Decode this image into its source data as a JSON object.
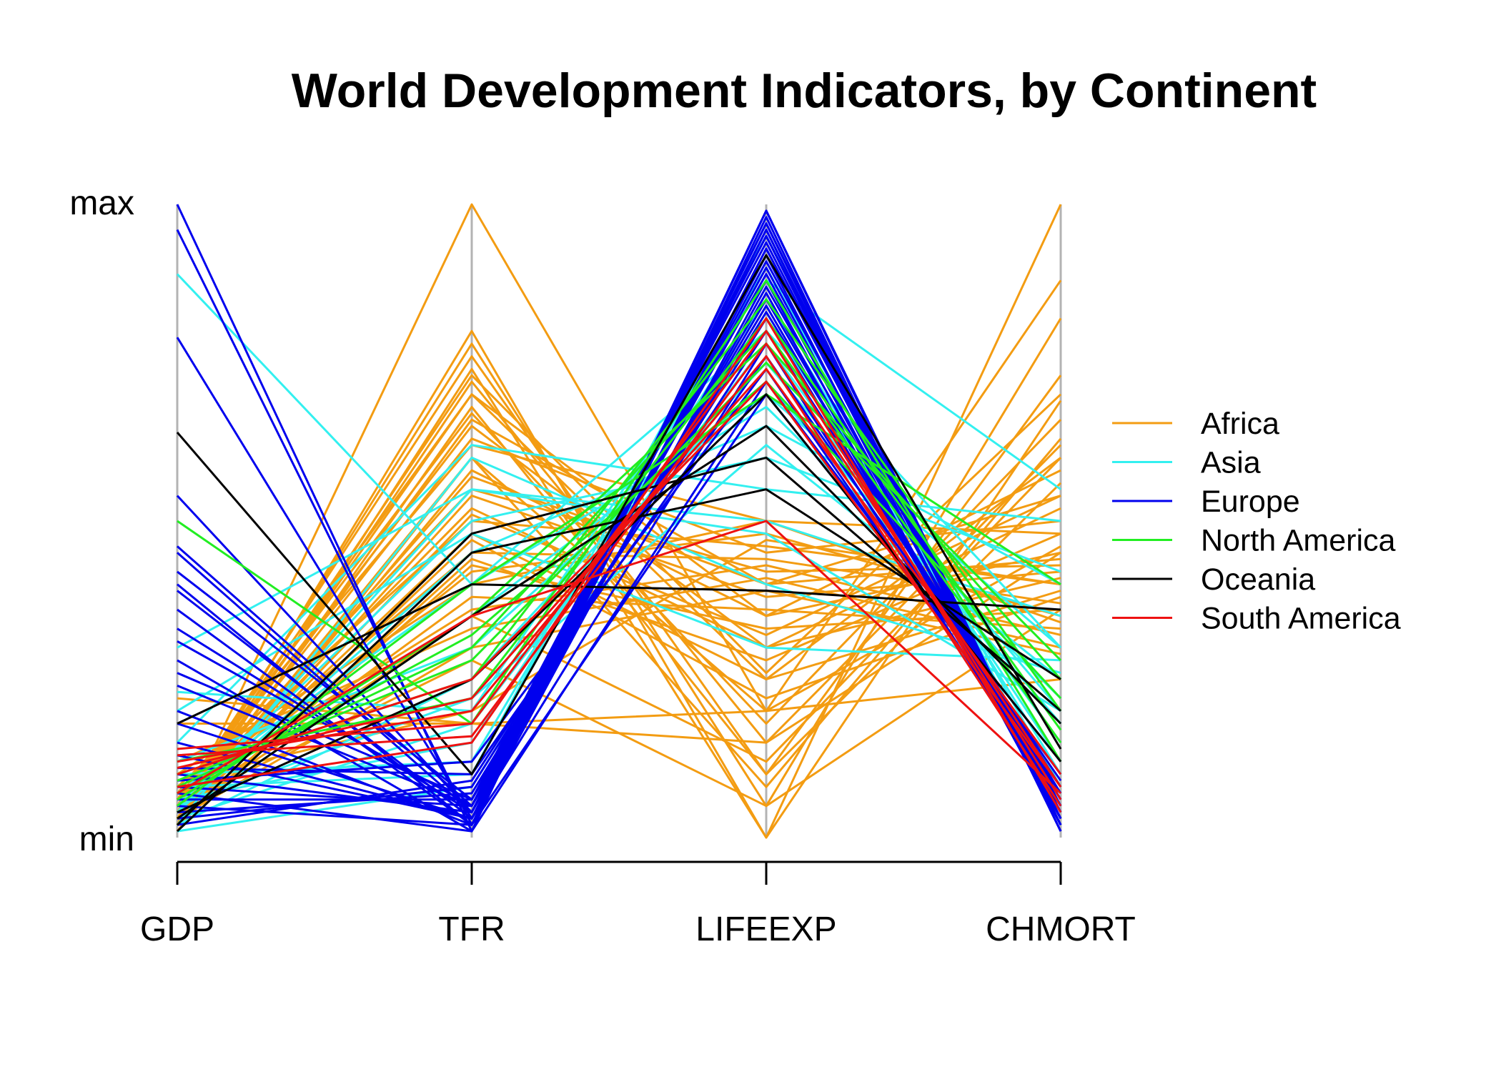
{
  "chart_data": {
    "type": "parallel-coordinates",
    "title": "World Development Indicators, by Continent",
    "axes": [
      "GDP",
      "TFR",
      "LIFEEXP",
      "CHMORT"
    ],
    "scale_labels": {
      "max": "max",
      "min": "min"
    },
    "ylim": [
      0,
      1
    ],
    "grid": false,
    "legend_position": "right",
    "legend": [
      {
        "name": "Africa",
        "color": "#f39c12"
      },
      {
        "name": "Asia",
        "color": "#33f0f0"
      },
      {
        "name": "Europe",
        "color": "#0000ee"
      },
      {
        "name": "North America",
        "color": "#22ee22"
      },
      {
        "name": "Oceania",
        "color": "#000000"
      },
      {
        "name": "South America",
        "color": "#ee1111"
      }
    ],
    "series": [
      {
        "name": "Africa",
        "lines": [
          [
            0.02,
            1.0,
            0.2,
            0.88
          ],
          [
            0.03,
            0.8,
            0.0,
            1.0
          ],
          [
            0.04,
            0.78,
            0.05,
            0.82
          ],
          [
            0.05,
            0.76,
            0.1,
            0.73
          ],
          [
            0.02,
            0.74,
            0.0,
            0.69
          ],
          [
            0.03,
            0.72,
            0.15,
            0.62
          ],
          [
            0.06,
            0.7,
            0.25,
            0.6
          ],
          [
            0.04,
            0.7,
            0.35,
            0.58
          ],
          [
            0.02,
            0.68,
            0.1,
            0.56
          ],
          [
            0.03,
            0.66,
            0.4,
            0.54
          ],
          [
            0.05,
            0.65,
            0.3,
            0.52
          ],
          [
            0.04,
            0.63,
            0.45,
            0.5
          ],
          [
            0.07,
            0.62,
            0.5,
            0.48
          ],
          [
            0.03,
            0.6,
            0.2,
            0.46
          ],
          [
            0.02,
            0.58,
            0.35,
            0.45
          ],
          [
            0.04,
            0.57,
            0.4,
            0.44
          ],
          [
            0.06,
            0.55,
            0.42,
            0.43
          ],
          [
            0.03,
            0.54,
            0.38,
            0.42
          ],
          [
            0.05,
            0.52,
            0.3,
            0.41
          ],
          [
            0.08,
            0.5,
            0.46,
            0.4
          ],
          [
            0.04,
            0.48,
            0.25,
            0.39
          ],
          [
            0.03,
            0.47,
            0.22,
            0.38
          ],
          [
            0.06,
            0.45,
            0.44,
            0.37
          ],
          [
            0.02,
            0.43,
            0.33,
            0.36
          ],
          [
            0.05,
            0.42,
            0.48,
            0.35
          ],
          [
            0.1,
            0.4,
            0.5,
            0.34
          ],
          [
            0.04,
            0.38,
            0.36,
            0.33
          ],
          [
            0.07,
            0.36,
            0.43,
            0.32
          ],
          [
            0.12,
            0.33,
            0.41,
            0.3
          ],
          [
            0.03,
            0.3,
            0.39,
            0.29
          ],
          [
            0.22,
            0.18,
            0.2,
            0.25
          ],
          [
            0.18,
            0.18,
            0.15,
            0.45
          ],
          [
            0.09,
            0.2,
            0.47,
            0.4
          ],
          [
            0.05,
            0.28,
            0.05,
            0.36
          ],
          [
            0.04,
            0.35,
            0.12,
            0.6
          ],
          [
            0.02,
            0.44,
            0.28,
            0.48
          ],
          [
            0.03,
            0.51,
            0.32,
            0.54
          ],
          [
            0.01,
            0.6,
            0.08,
            0.63
          ],
          [
            0.06,
            0.67,
            0.18,
            0.66
          ],
          [
            0.04,
            0.73,
            0.26,
            0.7
          ]
        ]
      },
      {
        "name": "Asia",
        "lines": [
          [
            0.89,
            0.4,
            0.8,
            0.3
          ],
          [
            0.15,
            0.62,
            0.55,
            0.5
          ],
          [
            0.3,
            0.55,
            0.48,
            0.2
          ],
          [
            0.23,
            0.2,
            0.88,
            0.55
          ],
          [
            0.05,
            0.5,
            0.6,
            0.42
          ],
          [
            0.04,
            0.45,
            0.65,
            0.4
          ],
          [
            0.03,
            0.35,
            0.7,
            0.3
          ],
          [
            0.02,
            0.25,
            0.75,
            0.2
          ],
          [
            0.06,
            0.15,
            0.85,
            0.1
          ],
          [
            0.08,
            0.1,
            0.95,
            0.05
          ],
          [
            0.1,
            0.12,
            0.9,
            0.08
          ],
          [
            0.04,
            0.55,
            0.5,
            0.35
          ],
          [
            0.02,
            0.6,
            0.4,
            0.26
          ],
          [
            0.12,
            0.3,
            0.72,
            0.18
          ],
          [
            0.07,
            0.4,
            0.68,
            0.22
          ],
          [
            0.01,
            0.08,
            0.82,
            0.12
          ],
          [
            0.03,
            0.18,
            0.78,
            0.15
          ],
          [
            0.2,
            0.48,
            0.3,
            0.28
          ],
          [
            0.05,
            0.22,
            0.62,
            0.25
          ]
        ]
      },
      {
        "name": "Europe",
        "lines": [
          [
            1.0,
            0.01,
            0.98,
            0.01
          ],
          [
            0.96,
            0.02,
            0.99,
            0.02
          ],
          [
            0.79,
            0.03,
            0.97,
            0.03
          ],
          [
            0.54,
            0.04,
            0.96,
            0.01
          ],
          [
            0.46,
            0.05,
            0.95,
            0.02
          ],
          [
            0.42,
            0.06,
            0.94,
            0.03
          ],
          [
            0.4,
            0.02,
            0.93,
            0.04
          ],
          [
            0.39,
            0.03,
            0.92,
            0.02
          ],
          [
            0.33,
            0.04,
            0.91,
            0.05
          ],
          [
            0.31,
            0.05,
            0.9,
            0.03
          ],
          [
            0.26,
            0.06,
            0.89,
            0.04
          ],
          [
            0.2,
            0.02,
            0.88,
            0.02
          ],
          [
            0.15,
            0.03,
            0.87,
            0.06
          ],
          [
            0.1,
            0.04,
            0.86,
            0.03
          ],
          [
            0.08,
            0.05,
            0.85,
            0.05
          ],
          [
            0.06,
            0.06,
            0.84,
            0.04
          ],
          [
            0.04,
            0.07,
            0.83,
            0.07
          ],
          [
            0.03,
            0.08,
            0.82,
            0.06
          ],
          [
            0.02,
            0.09,
            0.8,
            0.08
          ],
          [
            0.13,
            0.03,
            0.78,
            0.05
          ],
          [
            0.11,
            0.1,
            0.76,
            0.09
          ],
          [
            0.09,
            0.12,
            0.74,
            0.07
          ],
          [
            0.07,
            0.01,
            0.72,
            0.1
          ],
          [
            0.05,
            0.02,
            0.7,
            0.12
          ],
          [
            0.45,
            0.04,
            0.97,
            0.01
          ],
          [
            0.36,
            0.02,
            0.96,
            0.02
          ],
          [
            0.28,
            0.01,
            0.99,
            0.03
          ],
          [
            0.24,
            0.05,
            0.95,
            0.04
          ],
          [
            0.18,
            0.03,
            0.93,
            0.05
          ]
        ]
      },
      {
        "name": "North America",
        "lines": [
          [
            0.5,
            0.18,
            0.88,
            0.12
          ],
          [
            0.1,
            0.25,
            0.85,
            0.2
          ],
          [
            0.08,
            0.3,
            0.8,
            0.15
          ],
          [
            0.12,
            0.22,
            0.82,
            0.17
          ],
          [
            0.06,
            0.35,
            0.78,
            0.25
          ],
          [
            0.05,
            0.4,
            0.7,
            0.4
          ],
          [
            0.09,
            0.28,
            0.75,
            0.28
          ],
          [
            0.07,
            0.32,
            0.72,
            0.22
          ]
        ]
      },
      {
        "name": "Oceania",
        "lines": [
          [
            0.64,
            0.1,
            0.92,
            0.14
          ],
          [
            0.18,
            0.4,
            0.39,
            0.36
          ],
          [
            0.02,
            0.48,
            0.6,
            0.2
          ],
          [
            0.01,
            0.45,
            0.55,
            0.25
          ],
          [
            0.03,
            0.35,
            0.65,
            0.18
          ],
          [
            0.04,
            0.25,
            0.7,
            0.12
          ]
        ]
      },
      {
        "name": "South America",
        "lines": [
          [
            0.14,
            0.18,
            0.8,
            0.06
          ],
          [
            0.13,
            0.16,
            0.78,
            0.08
          ],
          [
            0.12,
            0.2,
            0.76,
            0.05
          ],
          [
            0.11,
            0.22,
            0.74,
            0.1
          ],
          [
            0.1,
            0.25,
            0.72,
            0.08
          ],
          [
            0.08,
            0.15,
            0.82,
            0.04
          ],
          [
            0.07,
            0.35,
            0.5,
            0.07
          ]
        ]
      }
    ]
  }
}
